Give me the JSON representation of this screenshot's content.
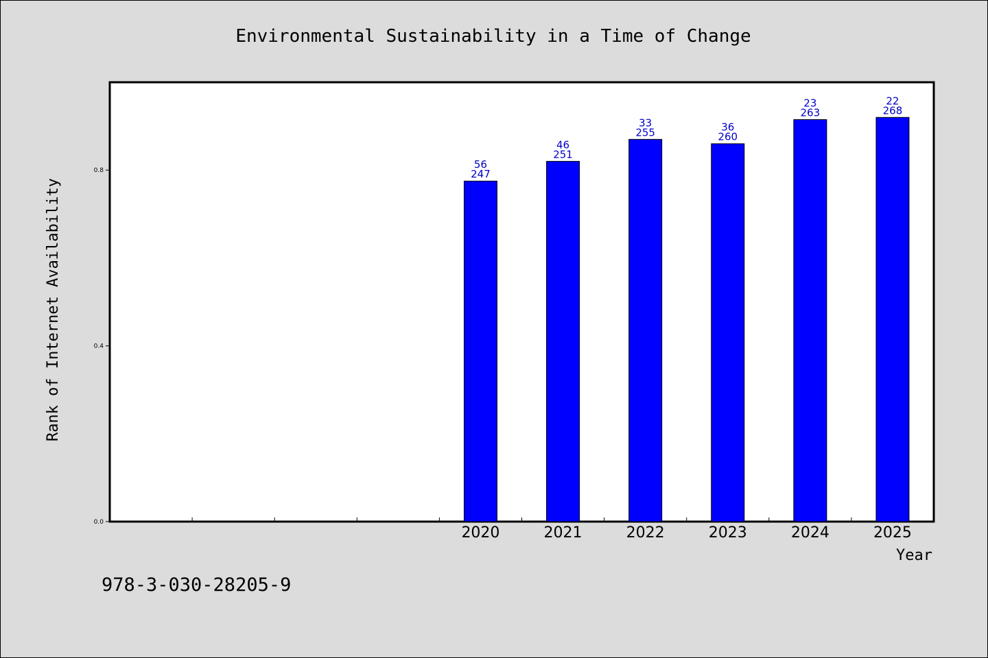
{
  "chart_data": {
    "type": "bar",
    "title": "Environmental Sustainability in a Time of Change",
    "xlabel": "Year",
    "ylabel": "Rank of Internet Availability",
    "categories": [
      "2020",
      "2021",
      "2022",
      "2023",
      "2024",
      "2025"
    ],
    "values": [
      0.775,
      0.82,
      0.87,
      0.86,
      0.915,
      0.92
    ],
    "label_top": [
      "56",
      "46",
      "33",
      "36",
      "23",
      "22"
    ],
    "label_bottom": [
      "247",
      "251",
      "255",
      "260",
      "263",
      "268"
    ],
    "ylim": [
      0,
      1
    ],
    "yticks": [
      "0.0",
      "0.4",
      "0.8"
    ],
    "ytick_values": [
      0,
      0.4,
      0.8
    ],
    "empty_slots_before": 4,
    "grid": false,
    "legend": "none",
    "bar_color": "#0000ff",
    "label_color": "#0000c8",
    "background": "#dcdcdc",
    "plot_background": "#ffffff"
  },
  "footer": {
    "isbn": "978-3-030-28205-9"
  }
}
